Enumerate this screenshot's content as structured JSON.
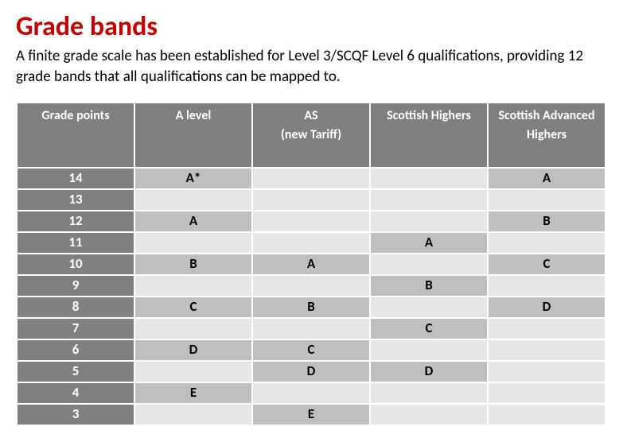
{
  "title": "Grade bands",
  "title_color": "#c00000",
  "intro_text": "A finite grade scale has been established for Level 3/SCQF Level 6 qualifications, providing 12 grade bands that all qualifications can be mapped to.",
  "intro_color": "#000000",
  "table": {
    "header_bg": "#808080",
    "header_text_color": "#ffffff",
    "col0_bg": "#808080",
    "col0_text_color": "#ffffff",
    "light_bg": "#e6e6e6",
    "dark_bg": "#bfbfbf",
    "cell_text_color": "#000000",
    "columns": [
      "Grade points",
      "A level",
      "AS\n(new Tariff)",
      "Scottish Highers",
      "Scottish Advanced Highers"
    ],
    "rows": [
      {
        "gp": "14",
        "cells": [
          "A*",
          "",
          "",
          "A"
        ]
      },
      {
        "gp": "13",
        "cells": [
          "",
          "",
          "",
          ""
        ]
      },
      {
        "gp": "12",
        "cells": [
          "A",
          "",
          "",
          "B"
        ]
      },
      {
        "gp": "11",
        "cells": [
          "",
          "",
          "A",
          ""
        ]
      },
      {
        "gp": "10",
        "cells": [
          "B",
          "A",
          "",
          "C"
        ]
      },
      {
        "gp": "9",
        "cells": [
          "",
          "",
          "B",
          ""
        ]
      },
      {
        "gp": "8",
        "cells": [
          "C",
          "B",
          "",
          "D"
        ]
      },
      {
        "gp": "7",
        "cells": [
          "",
          "",
          "C",
          ""
        ]
      },
      {
        "gp": "6",
        "cells": [
          "D",
          "C",
          "",
          ""
        ]
      },
      {
        "gp": "5",
        "cells": [
          "",
          "D",
          "D",
          ""
        ]
      },
      {
        "gp": "4",
        "cells": [
          "E",
          "",
          "",
          ""
        ]
      },
      {
        "gp": "3",
        "cells": [
          "",
          "E",
          "",
          ""
        ]
      }
    ]
  }
}
